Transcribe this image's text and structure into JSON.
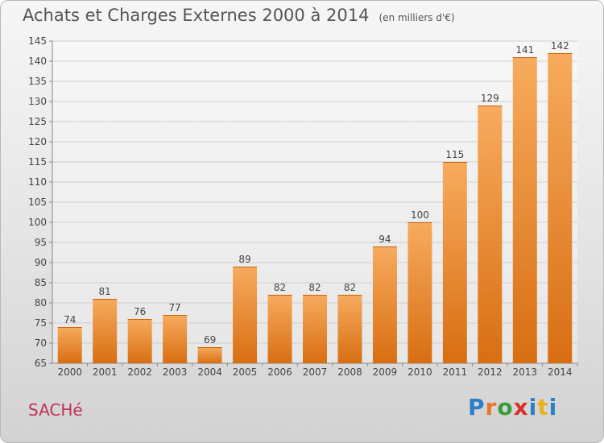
{
  "header": {
    "title": "Achats et Charges Externes 2000 à 2014",
    "subtitle": "(en milliers d'€)"
  },
  "footer": {
    "place": "SACHé",
    "brand": "Proxiti",
    "brand_colors": [
      "#2a7fc6",
      "#e8762d",
      "#3b9a3a",
      "#d6302d",
      "#2a7fc6",
      "#e8b21d",
      "#2a7fc6"
    ]
  },
  "colors": {
    "bar_light": "#f7ab5e",
    "bar_dark": "#d86e12",
    "grid": "#cfcfcf",
    "axis": "#888888",
    "text": "#444444"
  },
  "chart_data": {
    "type": "bar",
    "title": "Achats et Charges Externes 2000 à 2014",
    "subtitle": "(en milliers d'€)",
    "categories": [
      "2000",
      "2001",
      "2002",
      "2003",
      "2004",
      "2005",
      "2006",
      "2007",
      "2008",
      "2009",
      "2010",
      "2011",
      "2012",
      "2013",
      "2014"
    ],
    "values": [
      74,
      81,
      76,
      77,
      69,
      89,
      82,
      82,
      82,
      94,
      100,
      115,
      129,
      141,
      142
    ],
    "ylim": [
      65,
      145
    ],
    "yticks": [
      65,
      70,
      75,
      80,
      85,
      90,
      95,
      100,
      105,
      110,
      115,
      120,
      125,
      130,
      135,
      140,
      145
    ],
    "grid": true,
    "data_labels": true
  }
}
